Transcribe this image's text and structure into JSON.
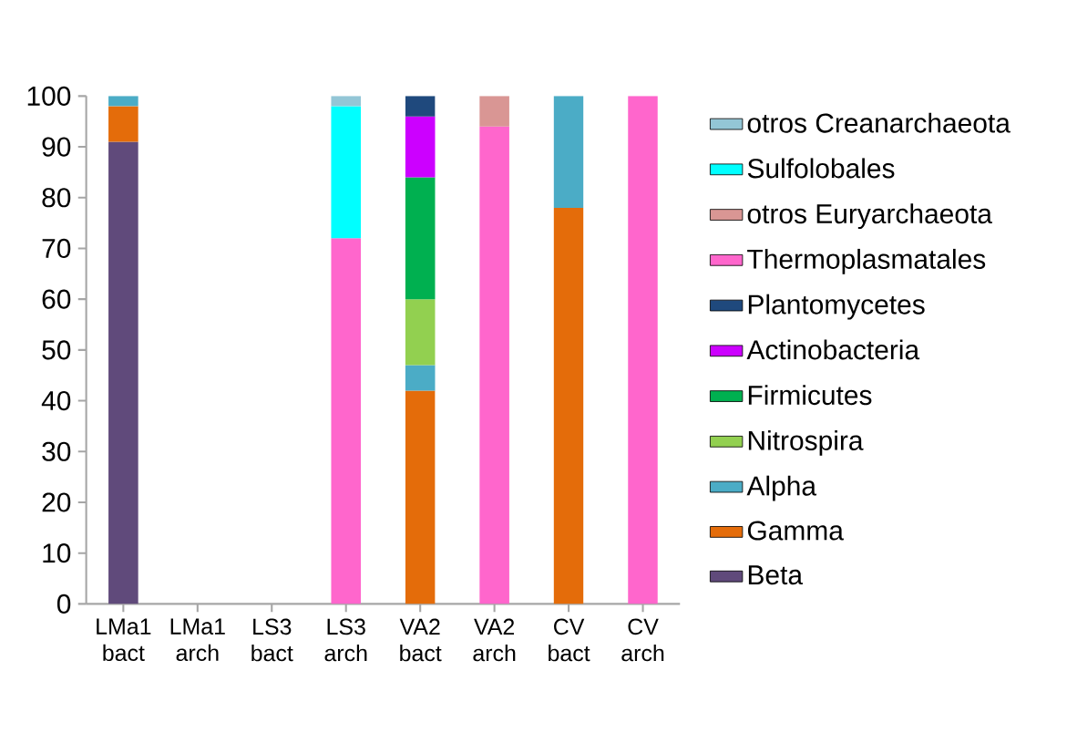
{
  "chart_data": {
    "type": "bar",
    "stacked": true,
    "categories": [
      "LMa1 bact",
      "LMa1 arch",
      "LS3 bact",
      "LS3 arch",
      "VA2 bact",
      "VA2 arch",
      "CV bact",
      "CV arch"
    ],
    "ylim": [
      0,
      100
    ],
    "yticks": [
      0,
      10,
      20,
      30,
      40,
      50,
      60,
      70,
      80,
      90,
      100
    ],
    "legend": "right",
    "grid": false,
    "series": [
      {
        "name": "Beta",
        "color": "#604a7b",
        "values": [
          91,
          null,
          null,
          null,
          null,
          null,
          null,
          null
        ]
      },
      {
        "name": "Gamma",
        "color": "#e46c0a",
        "values": [
          7,
          null,
          null,
          null,
          42,
          null,
          78,
          null
        ]
      },
      {
        "name": "Alpha",
        "color": "#4bacc6",
        "values": [
          2,
          null,
          null,
          null,
          5,
          null,
          22,
          null
        ]
      },
      {
        "name": "Nitrospira",
        "color": "#92d050",
        "values": [
          null,
          null,
          null,
          null,
          13,
          null,
          null,
          null
        ]
      },
      {
        "name": "Firmicutes",
        "color": "#00b050",
        "values": [
          null,
          null,
          null,
          null,
          24,
          null,
          null,
          null
        ]
      },
      {
        "name": "Actinobacteria",
        "color": "#cc00ff",
        "values": [
          null,
          null,
          null,
          null,
          12,
          null,
          null,
          null
        ]
      },
      {
        "name": "Plantomycetes",
        "color": "#1f497d",
        "values": [
          null,
          null,
          null,
          null,
          4,
          null,
          null,
          null
        ]
      },
      {
        "name": "Thermoplasmatales",
        "color": "#ff66cc",
        "values": [
          null,
          null,
          null,
          72,
          null,
          94,
          null,
          100
        ]
      },
      {
        "name": "otros Euryarchaeota",
        "color": "#d99694",
        "values": [
          null,
          null,
          null,
          null,
          null,
          6,
          null,
          null
        ]
      },
      {
        "name": "Sulfolobales",
        "color": "#00ffff",
        "values": [
          null,
          null,
          null,
          26,
          null,
          null,
          null,
          null
        ]
      },
      {
        "name": "otros Creanarchaeota",
        "color": "#93c6d6",
        "values": [
          null,
          null,
          null,
          2,
          null,
          null,
          null,
          null
        ]
      }
    ]
  }
}
